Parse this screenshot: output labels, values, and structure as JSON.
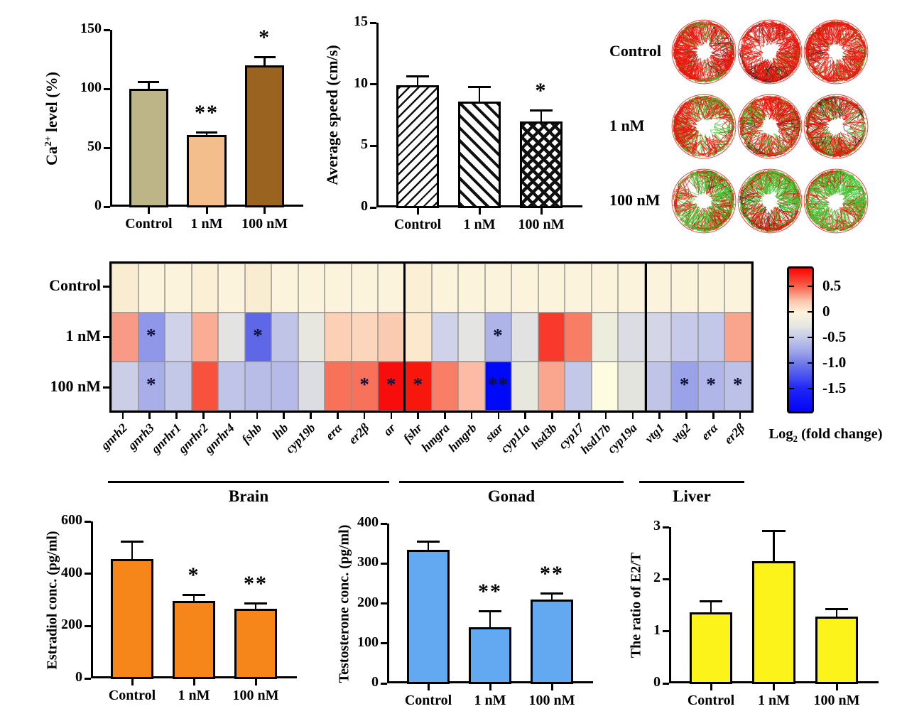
{
  "treatment_groups": [
    "Control",
    "1 nM",
    "100 nM"
  ],
  "chart_data": [
    {
      "id": "ca_level",
      "type": "bar",
      "ylabel": {
        "pre": "Ca",
        "sup": "2+",
        "post": " level (%)"
      },
      "categories": [
        "Control",
        "1 nM",
        "100 nM"
      ],
      "values": [
        100,
        61,
        120
      ],
      "errors": [
        6,
        2,
        7
      ],
      "significance": [
        "",
        "**",
        "*"
      ],
      "ylim": [
        0,
        150
      ],
      "yticks": [
        0,
        50,
        100,
        150
      ],
      "ytick_labels": [
        "0",
        "50",
        "100",
        "150"
      ],
      "bar_fills": [
        "#BDB487",
        "#F4BE8C",
        "#9A6420"
      ]
    },
    {
      "id": "average_speed",
      "type": "bar",
      "ylabel": {
        "pre": "Average speed (cm/s)"
      },
      "categories": [
        "Control",
        "1 nM",
        "100 nM"
      ],
      "values": [
        9.9,
        8.6,
        7.0
      ],
      "errors": [
        0.8,
        1.2,
        0.9
      ],
      "significance": [
        "",
        "",
        "*"
      ],
      "ylim": [
        0,
        15
      ],
      "yticks": [
        0,
        5,
        10,
        15
      ],
      "ytick_labels": [
        "0",
        "5",
        "10",
        "15"
      ],
      "bar_patterns": [
        "diag-up",
        "diag-down",
        "crosshatch"
      ]
    },
    {
      "id": "swimming_trajectories",
      "type": "trajectory-grid",
      "row_labels": [
        "Control",
        "1 nM",
        "100 nM"
      ],
      "replicates_per_row": 3,
      "track_colors": {
        "red": "#E8190C",
        "green": "#3FC52F",
        "black": "#222222"
      },
      "row_color_mix": [
        {
          "red": 0.8,
          "green": 0.15,
          "black": 0.05
        },
        {
          "red": 0.68,
          "green": 0.26,
          "black": 0.06
        },
        {
          "red": 0.42,
          "green": 0.52,
          "black": 0.06
        }
      ]
    },
    {
      "id": "gene_expression_heatmap",
      "type": "heatmap",
      "row_labels": [
        "Control",
        "1 nM",
        "100 nM"
      ],
      "groups": [
        {
          "label": "Brain",
          "genes": [
            "gnrh2",
            "gnrh3",
            "gnrhr1",
            "gnrhr2",
            "gnrhr4",
            "fshb",
            "lhb",
            "cyp19b",
            "erα",
            "er2β",
            "ar"
          ]
        },
        {
          "label": "Gonad",
          "genes": [
            "fshr",
            "hmgra",
            "hmgrb",
            "star",
            "cyp11a",
            "hsd3b",
            "cyp17",
            "hsd17b",
            "cyp19a"
          ]
        },
        {
          "label": "Liver",
          "genes": [
            "vtg1",
            "vtg2",
            "erα",
            "er2β"
          ]
        }
      ],
      "values_log2fc": [
        [
          0,
          0,
          0,
          0,
          0,
          0,
          0,
          0,
          0,
          0,
          0,
          0,
          0,
          0,
          0,
          0,
          0,
          0,
          0,
          0,
          0,
          0,
          0,
          0
        ],
        [
          0.35,
          -0.8,
          -0.3,
          0.3,
          -0.1,
          -1.1,
          -0.45,
          -0.05,
          0.2,
          0.15,
          0.2,
          0.1,
          -0.3,
          -0.1,
          -0.6,
          -0.12,
          0.6,
          0.4,
          -0.05,
          -0.2,
          -0.25,
          -0.4,
          -0.4,
          0.35
        ],
        [
          -0.3,
          -0.6,
          -0.4,
          0.55,
          -0.45,
          -0.5,
          -0.55,
          -0.15,
          0.45,
          0.45,
          0.7,
          0.65,
          0.4,
          0.2,
          -1.65,
          -0.05,
          0.35,
          -0.4,
          0.0,
          -0.1,
          -0.5,
          -0.7,
          -0.6,
          -0.55
        ]
      ],
      "cell_colors": [
        [
          "#FAECD0",
          "#FCF3DC",
          "#FCF3DC",
          "#FBF0D6",
          "#FCF3DC",
          "#FAECD0",
          "#FCF3DC",
          "#FCF3DC",
          "#FCF3DC",
          "#FCF3DC",
          "#FCF3DC",
          "#FBF0D6",
          "#FCF3DC",
          "#FCF3DC",
          "#FCF3DC",
          "#FCF3DC",
          "#FCF3DC",
          "#FCF3DC",
          "#FCF3DC",
          "#FCF3DC",
          "#FCF3DC",
          "#FCF3DC",
          "#FCF3DC",
          "#FCF3DC"
        ],
        [
          "#F99A86",
          "#8F97E8",
          "#CFD2E8",
          "#FAAC94",
          "#E2E3E2",
          "#5E68E6",
          "#C0C5E8",
          "#E7E7E0",
          "#FBD0B4",
          "#FBD6BC",
          "#FACBB0",
          "#FBE8CD",
          "#CFD2E8",
          "#E4E4E2",
          "#AEB4E8",
          "#E2E2E2",
          "#F8392B",
          "#F87D65",
          "#EDEDDE",
          "#DBDCE4",
          "#D4D6E8",
          "#C6CAE8",
          "#C3C8E8",
          "#F9A58E"
        ],
        [
          "#CBCEE6",
          "#A8AEE8",
          "#C3C7E8",
          "#F8523F",
          "#BFC4E8",
          "#B8BDE8",
          "#B5BAE8",
          "#DCDDE3",
          "#F87259",
          "#F8715B",
          "#F80D0D",
          "#F8170D",
          "#F87E66",
          "#FBBBA4",
          "#0008F8",
          "#E7E7DE",
          "#FAA58E",
          "#C3C7E8",
          "#FDFCE1",
          "#E4E4DE",
          "#C0C5E8",
          "#9AA2E8",
          "#B0B6E8",
          "#BCC1E8"
        ]
      ],
      "significance": [
        [
          "",
          "",
          "",
          "",
          "",
          "",
          "",
          "",
          "",
          "",
          "",
          "",
          "",
          "",
          "",
          "",
          "",
          "",
          "",
          "",
          "",
          "",
          "",
          ""
        ],
        [
          "",
          "*",
          "",
          "",
          "",
          "*",
          "",
          "",
          "",
          "",
          "",
          "",
          "",
          "",
          "*",
          "",
          "",
          "",
          "",
          "",
          "",
          "",
          "",
          ""
        ],
        [
          "",
          "*",
          "",
          "",
          "",
          "",
          "",
          "",
          "",
          "*",
          "*",
          "*",
          "",
          "",
          "**",
          "",
          "",
          "",
          "",
          "",
          "",
          "*",
          "*",
          "*"
        ]
      ],
      "colorbar": {
        "ticks": [
          0.5,
          0,
          -0.5,
          -1.0,
          -1.5
        ],
        "tick_labels": [
          "0.5",
          "0",
          "-0.5",
          "-1.0",
          "-1.5"
        ],
        "label": {
          "pre": "Log",
          "sub": "2",
          "post": " (fold change)"
        },
        "gradient": [
          {
            "pct": 0,
            "color": "#F80808"
          },
          {
            "pct": 9,
            "color": "#F84534"
          },
          {
            "pct": 14,
            "color": "#F8705A"
          },
          {
            "pct": 23,
            "color": "#FBC8AE"
          },
          {
            "pct": 31,
            "color": "#FCF3DC"
          },
          {
            "pct": 40,
            "color": "#E6E7E3"
          },
          {
            "pct": 49,
            "color": "#C3C8E8"
          },
          {
            "pct": 59,
            "color": "#99A1E8"
          },
          {
            "pct": 67,
            "color": "#6E77E8"
          },
          {
            "pct": 76,
            "color": "#444EF0"
          },
          {
            "pct": 84,
            "color": "#2026F6"
          },
          {
            "pct": 100,
            "color": "#0404F8"
          }
        ]
      }
    },
    {
      "id": "estradiol",
      "type": "bar",
      "ylabel": {
        "pre": "Estradiol conc. (pg/ml)"
      },
      "categories": [
        "Control",
        "1 nM",
        "100 nM"
      ],
      "values": [
        455,
        295,
        265
      ],
      "errors": [
        70,
        25,
        22
      ],
      "significance": [
        "",
        "*",
        "**"
      ],
      "ylim": [
        0,
        600
      ],
      "yticks": [
        0,
        200,
        400,
        600
      ],
      "ytick_labels": [
        "0",
        "200",
        "400",
        "600"
      ],
      "bar_fills": [
        "#F6851A",
        "#F6851A",
        "#F6851A"
      ]
    },
    {
      "id": "testosterone",
      "type": "bar",
      "ylabel": {
        "pre": "Testosterone conc. (pg/ml)"
      },
      "categories": [
        "Control",
        "1 nM",
        "100 nM"
      ],
      "values": [
        335,
        141,
        210
      ],
      "errors": [
        20,
        40,
        16
      ],
      "significance": [
        "",
        "**",
        "**"
      ],
      "ylim": [
        0,
        400
      ],
      "yticks": [
        0,
        100,
        200,
        300,
        400
      ],
      "ytick_labels": [
        "0",
        "100",
        "200",
        "300",
        "400"
      ],
      "bar_fills": [
        "#63A9F1",
        "#63A9F1",
        "#63A9F1"
      ]
    },
    {
      "id": "e2t_ratio",
      "type": "bar",
      "ylabel": {
        "pre": "The ratio of E2/T"
      },
      "categories": [
        "Control",
        "1 nM",
        "100 nM"
      ],
      "values": [
        1.36,
        2.35,
        1.28
      ],
      "errors": [
        0.22,
        0.58,
        0.15
      ],
      "significance": [
        "",
        "",
        ""
      ],
      "ylim": [
        0,
        3
      ],
      "yticks": [
        0,
        1,
        2,
        3
      ],
      "ytick_labels": [
        "0",
        "1",
        "2",
        "3"
      ],
      "bar_fills": [
        "#FBF319",
        "#FBF319",
        "#FBF319"
      ]
    }
  ]
}
